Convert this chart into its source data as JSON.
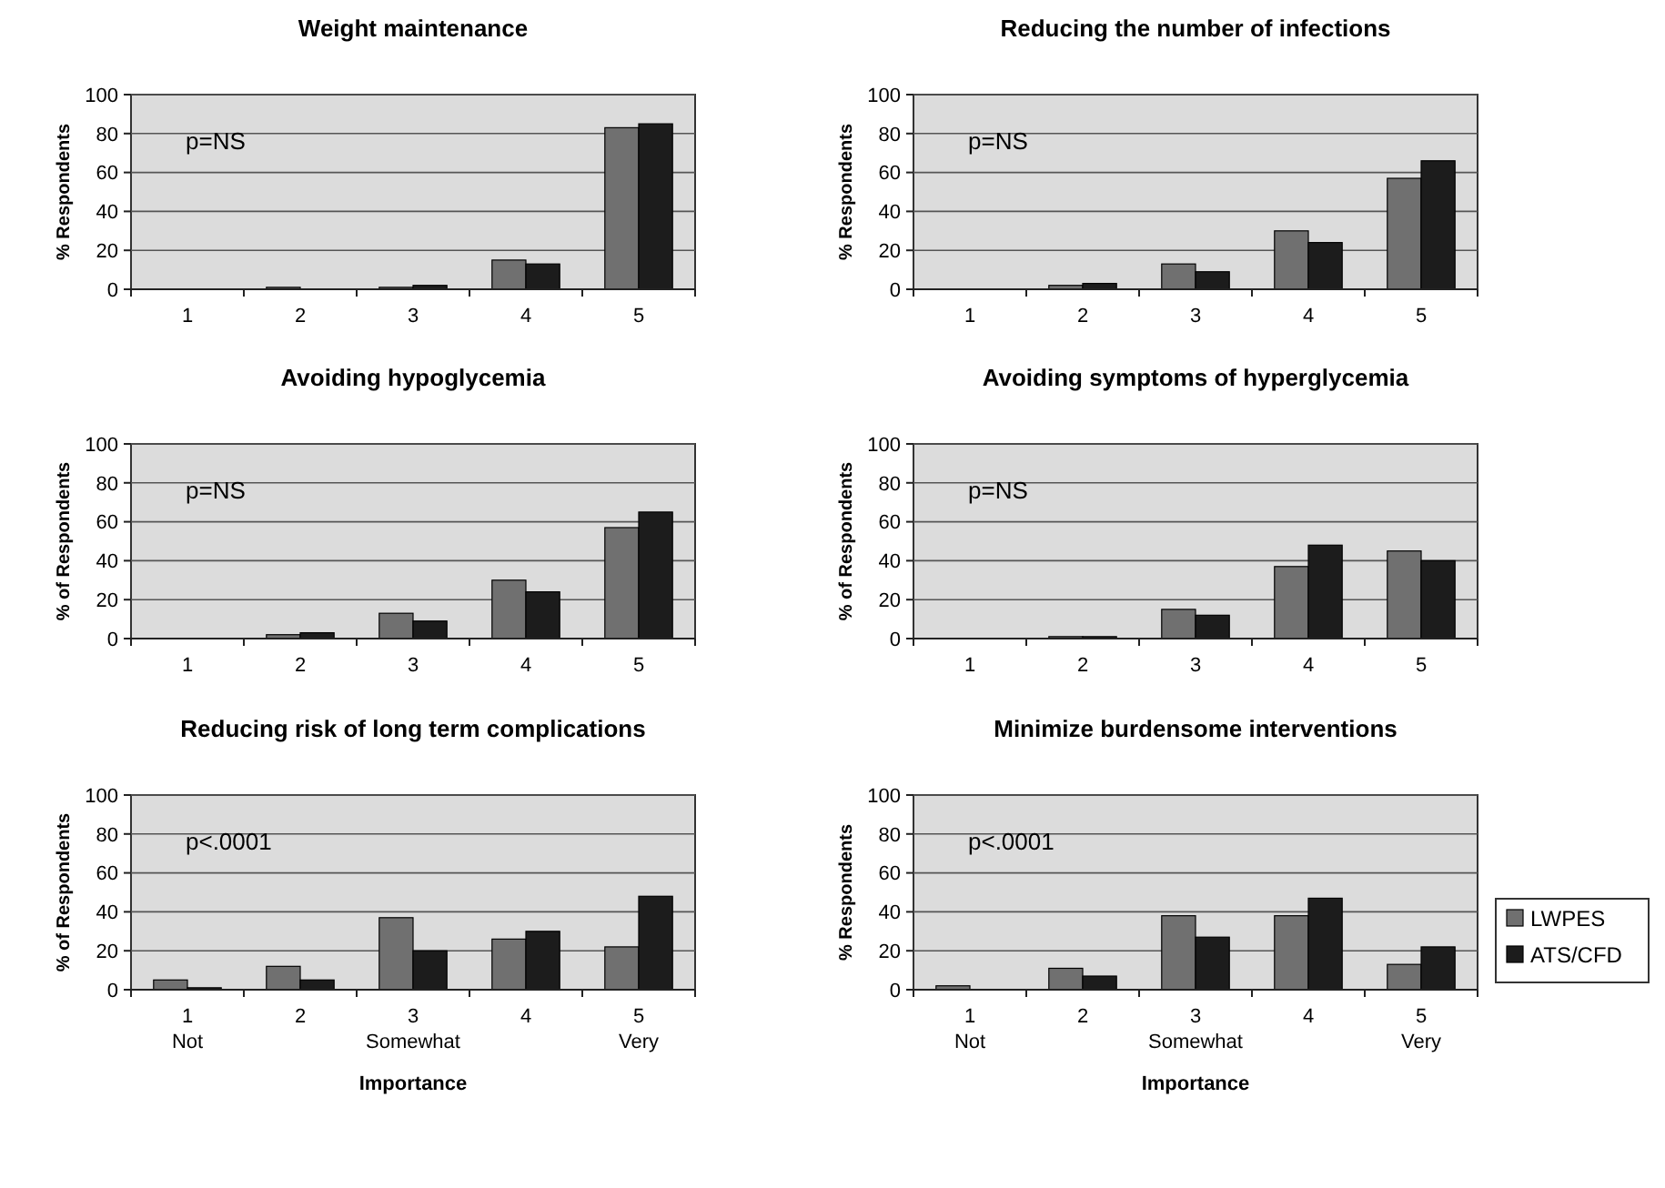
{
  "chart_data": [
    {
      "type": "bar",
      "title": "Weight maintenance",
      "ylabel": "% Respondents",
      "categories": [
        "1",
        "2",
        "3",
        "4",
        "5"
      ],
      "ylim": [
        0,
        100
      ],
      "yticks": [
        0,
        20,
        40,
        60,
        80,
        100
      ],
      "grid": "y",
      "legend": false,
      "annotations": [
        "p=NS"
      ],
      "series": [
        {
          "color": "#707070",
          "values": [
            0,
            1,
            1,
            15,
            83
          ]
        },
        {
          "color": "#1c1c1c",
          "values": [
            0,
            0,
            2,
            13,
            85
          ]
        }
      ]
    },
    {
      "type": "bar",
      "title": "Reducing the number of infections",
      "ylabel": "% Respondents",
      "categories": [
        "1",
        "2",
        "3",
        "4",
        "5"
      ],
      "ylim": [
        0,
        100
      ],
      "yticks": [
        0,
        20,
        40,
        60,
        80,
        100
      ],
      "grid": "y",
      "legend": false,
      "annotations": [
        "p=NS"
      ],
      "series": [
        {
          "color": "#707070",
          "values": [
            0,
            2,
            13,
            30,
            57
          ]
        },
        {
          "color": "#1c1c1c",
          "values": [
            0,
            3,
            9,
            24,
            66
          ]
        }
      ]
    },
    {
      "type": "bar",
      "title": "Avoiding hypoglycemia",
      "ylabel": "% of Respondents",
      "categories": [
        "1",
        "2",
        "3",
        "4",
        "5"
      ],
      "ylim": [
        0,
        100
      ],
      "yticks": [
        0,
        20,
        40,
        60,
        80,
        100
      ],
      "grid": "y",
      "legend": false,
      "annotations": [
        "p=NS"
      ],
      "series": [
        {
          "color": "#707070",
          "values": [
            0,
            2,
            13,
            30,
            57
          ]
        },
        {
          "color": "#1c1c1c",
          "values": [
            0,
            3,
            9,
            24,
            65
          ]
        }
      ]
    },
    {
      "type": "bar",
      "title": "Avoiding symptoms of hyperglycemia",
      "ylabel": "% of Respondents",
      "categories": [
        "1",
        "2",
        "3",
        "4",
        "5"
      ],
      "ylim": [
        0,
        100
      ],
      "yticks": [
        0,
        20,
        40,
        60,
        80,
        100
      ],
      "grid": "y",
      "legend": false,
      "annotations": [
        "p=NS"
      ],
      "series": [
        {
          "color": "#707070",
          "values": [
            0,
            1,
            15,
            37,
            45
          ]
        },
        {
          "color": "#1c1c1c",
          "values": [
            0,
            1,
            12,
            48,
            40
          ]
        }
      ]
    },
    {
      "type": "bar",
      "title": "Reducing risk of long term complications",
      "ylabel": "% of Respondents",
      "xlabel": "Importance",
      "categories": [
        "1\nNot",
        "2",
        "3\nSomewhat",
        "4",
        "5\nVery"
      ],
      "ylim": [
        0,
        100
      ],
      "yticks": [
        0,
        20,
        40,
        60,
        80,
        100
      ],
      "grid": "y",
      "legend": false,
      "annotations": [
        "p<.0001"
      ],
      "series": [
        {
          "color": "#707070",
          "values": [
            5,
            12,
            37,
            26,
            22
          ]
        },
        {
          "color": "#1c1c1c",
          "values": [
            1,
            5,
            20,
            30,
            48
          ]
        }
      ]
    },
    {
      "type": "bar",
      "title": "Minimize burdensome interventions",
      "ylabel": "% Respondents",
      "xlabel": "Importance",
      "categories": [
        "1\nNot",
        "2",
        "3\nSomewhat",
        "4",
        "5\nVery"
      ],
      "ylim": [
        0,
        100
      ],
      "yticks": [
        0,
        20,
        40,
        60,
        80,
        100
      ],
      "grid": "y",
      "legend": "right",
      "annotations": [
        "p<.0001"
      ],
      "series": [
        {
          "name": "LWPES",
          "color": "#707070",
          "values": [
            2,
            11,
            38,
            38,
            13
          ]
        },
        {
          "name": "ATS/CFD",
          "color": "#1c1c1c",
          "values": [
            0,
            7,
            27,
            47,
            22
          ]
        }
      ]
    }
  ]
}
